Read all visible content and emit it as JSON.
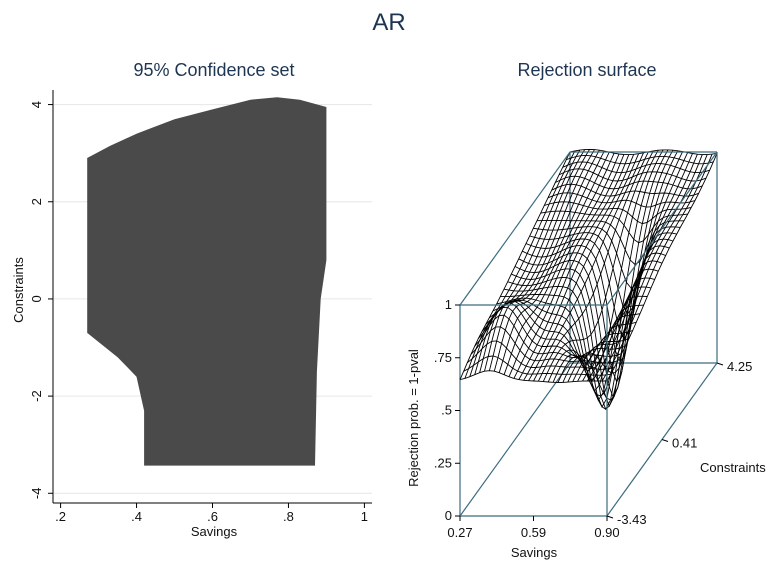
{
  "figure_title": "AR",
  "colors": {
    "title": "#1e3552",
    "fill": "#4a4a4a",
    "box": "#3d6b7d",
    "mesh": "#000000",
    "grid": "#e6e6e6"
  },
  "chart_data": [
    {
      "type": "area",
      "title": "95% Confidence set",
      "xlabel": "Savings",
      "ylabel": "Constraints",
      "xlim": [
        0.18,
        1.02
      ],
      "ylim": [
        -4.2,
        4.3
      ],
      "x_ticks": [
        ".2",
        ".4",
        ".6",
        ".8",
        "1"
      ],
      "x_tick_values": [
        0.2,
        0.4,
        0.6,
        0.8,
        1.0
      ],
      "y_ticks": [
        "-4",
        "-2",
        "0",
        "2",
        "4"
      ],
      "y_tick_values": [
        -4,
        -2,
        0,
        2,
        4
      ],
      "grid": true,
      "region_outline": [
        [
          0.27,
          2.9
        ],
        [
          0.33,
          3.15
        ],
        [
          0.4,
          3.4
        ],
        [
          0.5,
          3.7
        ],
        [
          0.6,
          3.9
        ],
        [
          0.7,
          4.1
        ],
        [
          0.77,
          4.15
        ],
        [
          0.83,
          4.1
        ],
        [
          0.9,
          3.95
        ],
        [
          0.9,
          0.8
        ],
        [
          0.885,
          0.0
        ],
        [
          0.875,
          -1.5
        ],
        [
          0.87,
          -3.43
        ],
        [
          0.42,
          -3.43
        ],
        [
          0.42,
          -2.3
        ],
        [
          0.4,
          -1.6
        ],
        [
          0.35,
          -1.2
        ],
        [
          0.27,
          -0.7
        ]
      ]
    },
    {
      "type": "surface",
      "title": "Rejection surface",
      "xlabel": "Savings",
      "ylabel": "Constraints",
      "zlabel": "Rejection prob. = 1-pval",
      "x_ticks": [
        "0.27",
        "0.59",
        "0.90"
      ],
      "x_range": [
        0.27,
        0.9
      ],
      "y_ticks": [
        "-3.43",
        "0.41",
        "4.25"
      ],
      "y_range": [
        -3.43,
        4.25
      ],
      "z_ticks": [
        "0",
        ".25",
        ".5",
        ".75",
        "1"
      ],
      "z_range": [
        0,
        1
      ],
      "grid_size": 30,
      "approx_minimum": {
        "savings": 0.69,
        "constraints": 0.2,
        "rejection_prob": 0.37
      }
    }
  ]
}
